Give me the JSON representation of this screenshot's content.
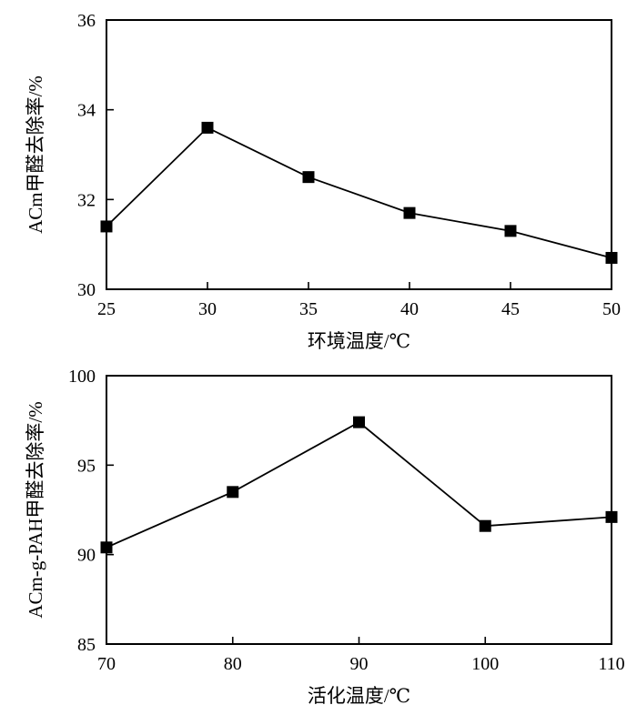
{
  "chart_data": [
    {
      "type": "line",
      "xlabel": "环境温度/℃",
      "ylabel": "ACm甲醛去除率/%",
      "xlim": [
        25,
        50
      ],
      "ylim": [
        30,
        36
      ],
      "xticks": [
        25,
        30,
        35,
        40,
        45,
        50
      ],
      "yticks": [
        30,
        32,
        34,
        36
      ],
      "grid": false,
      "marker": "square",
      "series": [
        {
          "x": [
            25,
            30,
            35,
            40,
            45,
            50
          ],
          "y": [
            31.4,
            33.6,
            32.5,
            31.7,
            31.3,
            30.7
          ]
        }
      ]
    },
    {
      "type": "line",
      "xlabel": "活化温度/℃",
      "ylabel": "ACm-g-PAH甲醛去除率/%",
      "xlim": [
        70,
        110
      ],
      "ylim": [
        85,
        100
      ],
      "xticks": [
        70,
        80,
        90,
        100,
        110
      ],
      "yticks": [
        85,
        90,
        95,
        100
      ],
      "grid": false,
      "marker": "square",
      "series": [
        {
          "x": [
            70,
            80,
            90,
            100,
            110
          ],
          "y": [
            90.4,
            93.5,
            97.4,
            91.6,
            92.1
          ]
        }
      ]
    }
  ]
}
